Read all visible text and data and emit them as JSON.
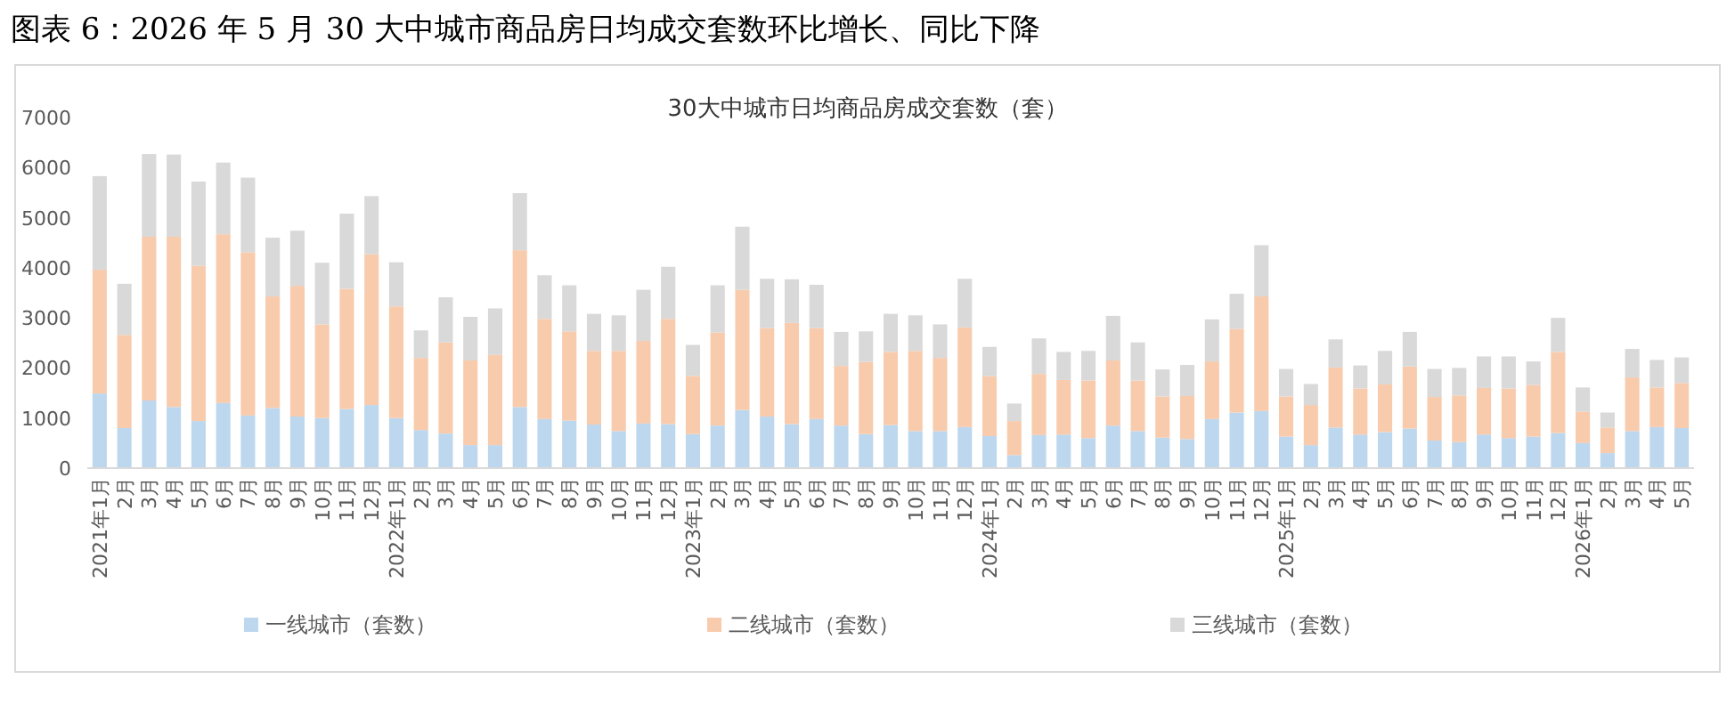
{
  "chart_data": {
    "type": "bar",
    "stacked": true,
    "title": "图表 6：2026 年 5 月 30 大中城市商品房日均成交套数环比增长、同比下降",
    "subtitle": "30大中城市日均商品房成交套数（套）",
    "categories": [
      "2021年1月",
      "2月",
      "3月",
      "4月",
      "5月",
      "6月",
      "7月",
      "8月",
      "9月",
      "10月",
      "11月",
      "12月",
      "2022年1月",
      "2月",
      "3月",
      "4月",
      "5月",
      "6月",
      "7月",
      "8月",
      "9月",
      "10月",
      "11月",
      "12月",
      "2023年1月",
      "2月",
      "3月",
      "4月",
      "5月",
      "6月",
      "7月",
      "8月",
      "9月",
      "10月",
      "11月",
      "12月",
      "2024年1月",
      "2月",
      "3月",
      "4月",
      "5月",
      "6月",
      "7月",
      "8月",
      "9月",
      "10月",
      "11月",
      "12月",
      "2025年1月",
      "2月",
      "3月",
      "4月",
      "5月",
      "6月",
      "7月",
      "8月",
      "9月",
      "10月",
      "11月",
      "12月",
      "2026年1月",
      "2月",
      "3月",
      "4月",
      "5月"
    ],
    "series": [
      {
        "name": "一线城市（套数）",
        "color": "#bdd7ee",
        "values": [
          1490,
          800,
          1350,
          1220,
          940,
          1300,
          1050,
          1200,
          1030,
          1000,
          1180,
          1260,
          1000,
          760,
          690,
          460,
          460,
          1220,
          980,
          950,
          870,
          740,
          890,
          880,
          680,
          850,
          1160,
          1030,
          880,
          980,
          850,
          680,
          860,
          740,
          740,
          820,
          640,
          260,
          660,
          670,
          600,
          850,
          740,
          610,
          580,
          980,
          1110,
          1140,
          630,
          460,
          810,
          670,
          720,
          790,
          550,
          520,
          670,
          600,
          630,
          700,
          500,
          300,
          740,
          820,
          800
        ]
      },
      {
        "name": "二线城市（套数）",
        "color": "#f8cbad",
        "values": [
          2470,
          1860,
          3270,
          3400,
          3100,
          3370,
          3260,
          2230,
          2610,
          1870,
          2400,
          3010,
          2230,
          1440,
          1820,
          1690,
          1800,
          3130,
          2000,
          1780,
          1470,
          1600,
          1650,
          2100,
          1160,
          1860,
          2400,
          1770,
          2020,
          1820,
          1190,
          1440,
          1460,
          1600,
          1460,
          1990,
          1200,
          680,
          1220,
          1090,
          1150,
          1300,
          1010,
          820,
          860,
          1150,
          1670,
          2290,
          800,
          800,
          1200,
          920,
          950,
          1240,
          870,
          930,
          930,
          990,
          1030,
          1620,
          630,
          510,
          1070,
          790,
          900
        ]
      },
      {
        "name": "三线城市（套数）",
        "color": "#d9d9d9",
        "values": [
          1870,
          1020,
          1650,
          1640,
          1680,
          1430,
          1490,
          1170,
          1100,
          1230,
          1500,
          1160,
          880,
          550,
          900,
          870,
          930,
          1140,
          870,
          920,
          740,
          710,
          1020,
          1040,
          620,
          940,
          1260,
          980,
          870,
          860,
          680,
          610,
          760,
          710,
          670,
          970,
          580,
          350,
          710,
          560,
          590,
          890,
          760,
          540,
          620,
          840,
          700,
          1020,
          550,
          420,
          560,
          460,
          670,
          690,
          560,
          550,
          630,
          640,
          470,
          680,
          480,
          300,
          570,
          550,
          510
        ]
      }
    ],
    "ylim": [
      0,
      7000
    ],
    "yticks": [
      0,
      1000,
      2000,
      3000,
      4000,
      5000,
      6000,
      7000
    ],
    "legend": "bottom"
  }
}
